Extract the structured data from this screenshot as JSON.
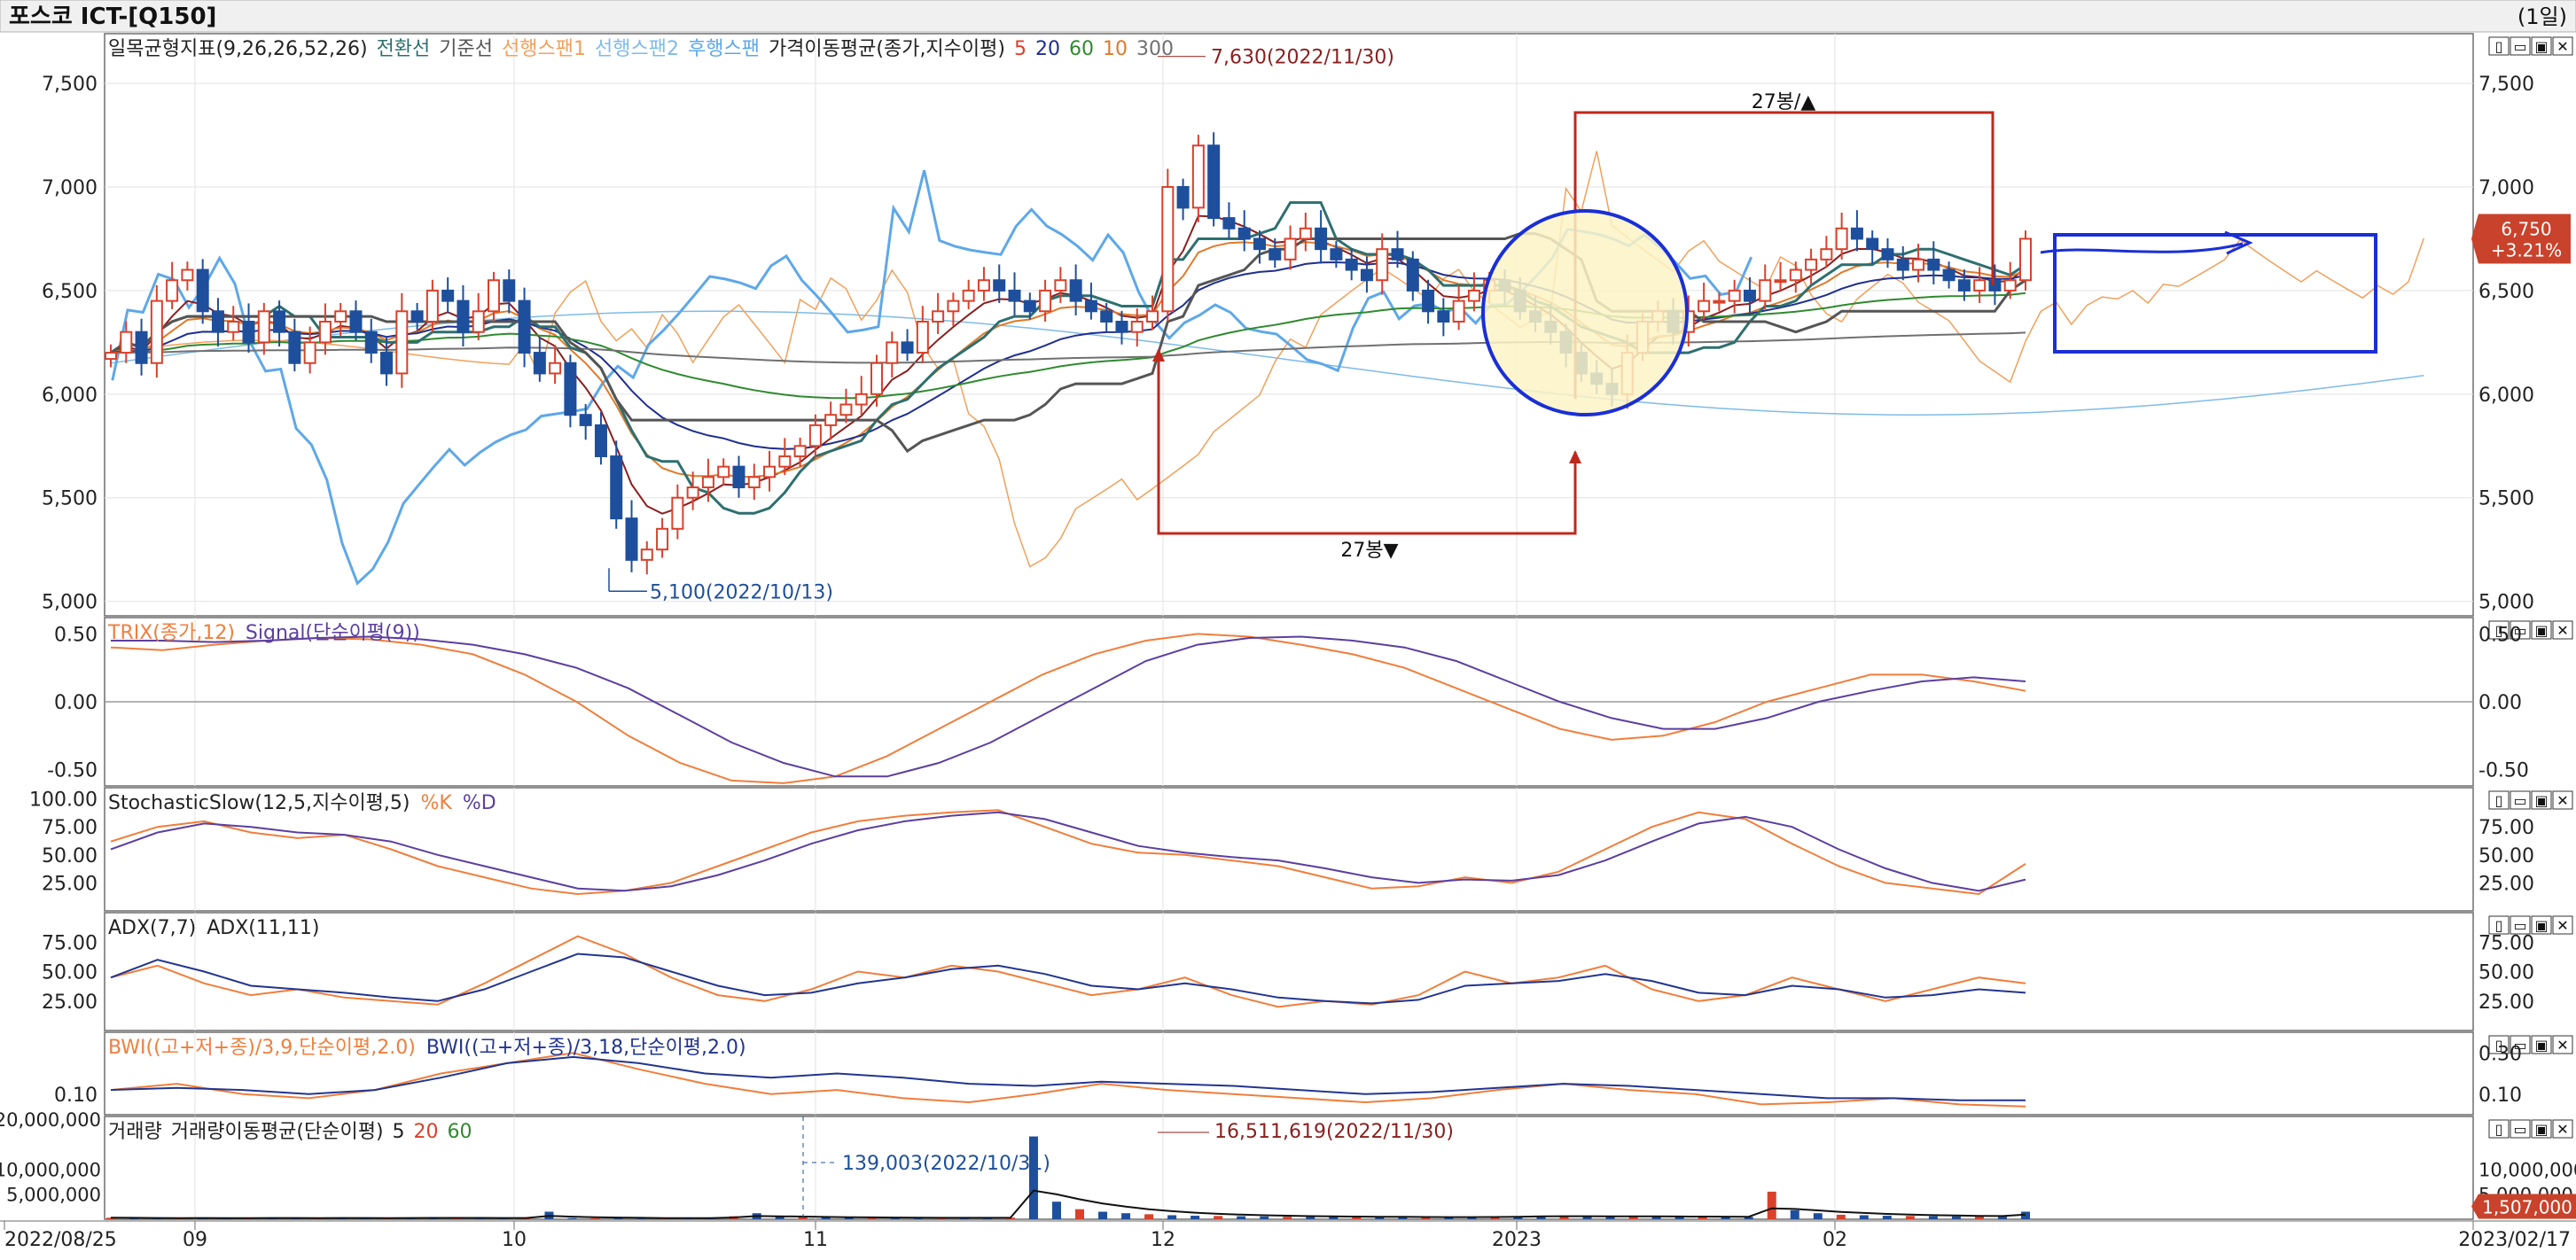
{
  "window": {
    "title": "포스코 ICT-[Q150]",
    "period": "(1일)"
  },
  "colors": {
    "bg": "#ffffff",
    "frame": "#6e6e6e",
    "grid": "#e3e3e3",
    "up": "#d9412b",
    "down": "#1e4f9c",
    "ma5": "#8a1f1f",
    "ma20": "#1f2f8f",
    "ma60": "#2f8a2f",
    "ma10": "#e07a2a",
    "ma300": "#707070",
    "conv": "#2e6f6f",
    "base": "#555555",
    "spanA": "#f2a05a",
    "spanB": "#7fbbe8",
    "lag": "#5ea8e8",
    "trix": "#f07e3c",
    "signal": "#5b3fa0",
    "stochK": "#f07e3c",
    "stochD": "#5b3fa0",
    "adx7": "#f07e3c",
    "adx11": "#22358f",
    "bwi1": "#f07e3c",
    "bwi2": "#22358f",
    "vol": "#1e4f9c",
    "annotRed": "#c0281c",
    "annotBlue": "#1a2fd6",
    "priceTag": "#c9422b",
    "priceRef": "#2a6fbd"
  },
  "panel_controls": [
    "▯",
    "▭",
    "▣",
    "✕"
  ],
  "time_axis": {
    "start": "2022/08/25",
    "end": "2023/02/17",
    "labels": [
      "2022/08/25",
      "09",
      "10",
      "11",
      "12",
      "2023",
      "02",
      "2023/02/17"
    ]
  },
  "price_panel": {
    "legend": [
      {
        "text": "일목균형지표(9,26,26,52,26)",
        "color": "#222222"
      },
      {
        "text": "전환선",
        "color": "#2e6f6f"
      },
      {
        "text": "기준선",
        "color": "#555555"
      },
      {
        "text": "선행스팬1",
        "color": "#f2a05a"
      },
      {
        "text": "선행스팬2",
        "color": "#7fbbe8"
      },
      {
        "text": "후행스팬",
        "color": "#5ea8e8"
      },
      {
        "text": "가격이동평균(종가,지수이평)",
        "color": "#222222"
      },
      {
        "text": "5",
        "color": "#d9412b"
      },
      {
        "text": "20",
        "color": "#1f2f8f"
      },
      {
        "text": "60",
        "color": "#2f8a2f"
      },
      {
        "text": "10",
        "color": "#e07a2a"
      },
      {
        "text": "300",
        "color": "#707070"
      }
    ],
    "yticks": [
      "7,500",
      "7,000",
      "6,500",
      "6,000",
      "5,500",
      "5,000"
    ],
    "ytick_values": [
      7500,
      7000,
      6500,
      6000,
      5500,
      5000
    ],
    "right_yticks": [
      "7,500",
      "7,000",
      "6,500",
      "6,000",
      "5,500",
      "5,000"
    ],
    "ylim": [
      5000,
      7500
    ],
    "high_label": "7,630(2022/11/30)",
    "low_label": "5,100(2022/10/13)",
    "label_27_top": "27봉/▲",
    "label_27_bottom": "27봉▼",
    "current_price": "6,750",
    "current_change": "+3.21%"
  },
  "trix_panel": {
    "legend": [
      {
        "text": "TRIX(종가,12)",
        "color": "#f07e3c"
      },
      {
        "text": "Signal(단순이평(9))",
        "color": "#5b3fa0"
      }
    ],
    "yticks": [
      "0.50",
      "0.00",
      "-0.50"
    ],
    "right_yticks": [
      "0.50",
      "0.00",
      "-0.50"
    ]
  },
  "stoch_panel": {
    "legend": [
      {
        "text": "StochasticSlow(12,5,지수이평,5)",
        "color": "#222222"
      },
      {
        "text": "%K",
        "color": "#f07e3c"
      },
      {
        "text": "%D",
        "color": "#5b3fa0"
      }
    ],
    "yticks": [
      "100.00",
      "75.00",
      "50.00",
      "25.00"
    ],
    "right_yticks": [
      "75.00",
      "50.00",
      "25.00"
    ]
  },
  "adx_panel": {
    "legend": [
      {
        "text": "ADX(7,7)",
        "color": "#222222"
      },
      {
        "text": "ADX(11,11)",
        "color": "#222222"
      }
    ],
    "yticks": [
      "75.00",
      "50.00",
      "25.00"
    ],
    "right_yticks": [
      "75.00",
      "50.00",
      "25.00"
    ]
  },
  "bwi_panel": {
    "legend": [
      {
        "text": "BWI((고+저+종)/3,9,단순이평,2.0)",
        "color": "#f07e3c"
      },
      {
        "text": "BWI((고+저+종)/3,18,단순이평,2.0)",
        "color": "#22358f"
      }
    ],
    "yticks": [
      "0.10"
    ],
    "right_yticks": [
      "0.30",
      "0.10"
    ]
  },
  "volume_panel": {
    "legend": [
      {
        "text": "거래량",
        "color": "#222222"
      },
      {
        "text": "거래량이동평균(단순이평)",
        "color": "#222222"
      },
      {
        "text": "5",
        "color": "#222222"
      },
      {
        "text": "20",
        "color": "#d9412b"
      },
      {
        "text": "60",
        "color": "#2f8a2f"
      }
    ],
    "yticks": [
      "20,000,000",
      "10,000,000",
      "5,000,000"
    ],
    "right_yticks": [
      "10,000,000",
      "5,000,000"
    ],
    "high_label": "16,511,619(2022/11/30)",
    "low_label": "139,003(2022/10/31)",
    "current_volume": "1,507,000"
  },
  "chart_data": [
    {
      "type": "candlestick",
      "title": "포스코 ICT-[Q150]",
      "x_start": "2022/08/25",
      "x_end": "2023/02/17",
      "ylim": [
        5000,
        7500
      ],
      "close": [
        6200,
        6300,
        6150,
        6450,
        6550,
        6600,
        6400,
        6300,
        6350,
        6250,
        6400,
        6300,
        6150,
        6250,
        6350,
        6400,
        6300,
        6200,
        6100,
        6400,
        6350,
        6500,
        6450,
        6300,
        6400,
        6550,
        6450,
        6200,
        6100,
        6150,
        5900,
        5850,
        5700,
        5400,
        5200,
        5250,
        5350,
        5500,
        5550,
        5600,
        5650,
        5550,
        5600,
        5650,
        5700,
        5750,
        5850,
        5900,
        5950,
        6000,
        6150,
        6250,
        6200,
        6350,
        6400,
        6450,
        6500,
        6550,
        6500,
        6450,
        6400,
        6500,
        6550,
        6450,
        6400,
        6350,
        6300,
        6350,
        6400,
        7000,
        6900,
        7200,
        6850,
        6800,
        6750,
        6700,
        6650,
        6750,
        6800,
        6700,
        6650,
        6600,
        6550,
        6700,
        6650,
        6500,
        6400,
        6350,
        6450,
        6500,
        6550,
        6500,
        6400,
        6350,
        6300,
        6200,
        6100,
        6050,
        6000,
        6200,
        6350,
        6400,
        6300,
        6400,
        6450,
        6450,
        6500,
        6450,
        6550,
        6550,
        6600,
        6650,
        6700,
        6800,
        6750,
        6700,
        6650,
        6600,
        6650,
        6600,
        6550,
        6500,
        6550,
        6500,
        6550,
        6750
      ],
      "high": 7630,
      "high_date": "2022/11/30",
      "low": 5100,
      "low_date": "2022/10/13",
      "last_close": 6750,
      "change_pct": 3.21
    },
    {
      "type": "line",
      "name": "TRIX",
      "series": [
        {
          "name": "TRIX(종가,12)",
          "values": [
            0.4,
            0.38,
            0.42,
            0.45,
            0.47,
            0.46,
            0.42,
            0.35,
            0.2,
            0.0,
            -0.25,
            -0.45,
            -0.58,
            -0.6,
            -0.55,
            -0.4,
            -0.2,
            0.0,
            0.2,
            0.35,
            0.45,
            0.5,
            0.48,
            0.42,
            0.35,
            0.25,
            0.1,
            -0.05,
            -0.2,
            -0.28,
            -0.25,
            -0.15,
            0.0,
            0.1,
            0.2,
            0.2,
            0.15,
            0.08
          ]
        },
        {
          "name": "Signal(단순이평(9))",
          "values": [
            0.45,
            0.45,
            0.44,
            0.45,
            0.47,
            0.48,
            0.46,
            0.42,
            0.35,
            0.25,
            0.1,
            -0.1,
            -0.3,
            -0.45,
            -0.55,
            -0.55,
            -0.45,
            -0.3,
            -0.1,
            0.1,
            0.3,
            0.42,
            0.47,
            0.48,
            0.45,
            0.4,
            0.3,
            0.15,
            0.0,
            -0.12,
            -0.2,
            -0.2,
            -0.12,
            0.0,
            0.08,
            0.15,
            0.18,
            0.15
          ]
        }
      ],
      "ylim": [
        -0.6,
        0.6
      ]
    },
    {
      "type": "line",
      "name": "StochasticSlow",
      "series": [
        {
          "name": "%K",
          "values": [
            62,
            75,
            80,
            70,
            65,
            68,
            55,
            40,
            30,
            20,
            15,
            18,
            25,
            40,
            55,
            70,
            80,
            85,
            88,
            90,
            75,
            60,
            52,
            50,
            45,
            40,
            30,
            20,
            22,
            30,
            25,
            35,
            55,
            75,
            88,
            82,
            60,
            40,
            25,
            20,
            15,
            42
          ]
        },
        {
          "name": "%D",
          "values": [
            55,
            70,
            78,
            75,
            70,
            68,
            62,
            50,
            40,
            30,
            20,
            18,
            22,
            32,
            45,
            60,
            72,
            80,
            85,
            88,
            82,
            70,
            58,
            52,
            48,
            45,
            38,
            30,
            25,
            28,
            27,
            32,
            45,
            62,
            78,
            84,
            75,
            55,
            38,
            25,
            18,
            28
          ]
        }
      ],
      "ylim": [
        0,
        100
      ]
    },
    {
      "type": "line",
      "name": "ADX",
      "series": [
        {
          "name": "ADX(7,7)",
          "values": [
            45,
            55,
            40,
            30,
            35,
            28,
            25,
            22,
            40,
            60,
            80,
            65,
            45,
            30,
            25,
            35,
            50,
            45,
            55,
            50,
            40,
            30,
            35,
            45,
            30,
            20,
            25,
            22,
            30,
            50,
            40,
            45,
            55,
            35,
            25,
            30,
            45,
            35,
            25,
            35,
            45,
            40
          ]
        },
        {
          "name": "ADX(11,11)",
          "values": [
            45,
            60,
            50,
            38,
            35,
            32,
            28,
            25,
            35,
            50,
            65,
            62,
            50,
            38,
            30,
            32,
            40,
            45,
            52,
            55,
            48,
            38,
            35,
            40,
            35,
            28,
            25,
            23,
            26,
            38,
            40,
            42,
            48,
            42,
            32,
            30,
            38,
            35,
            28,
            30,
            35,
            32
          ]
        }
      ],
      "ylim": [
        0,
        100
      ]
    },
    {
      "type": "line",
      "name": "BWI",
      "series": [
        {
          "name": "BWI((고+저+종)/3,9,단순이평,2.0)",
          "values": [
            0.12,
            0.15,
            0.1,
            0.08,
            0.12,
            0.2,
            0.25,
            0.3,
            0.22,
            0.15,
            0.1,
            0.12,
            0.08,
            0.06,
            0.1,
            0.15,
            0.12,
            0.1,
            0.08,
            0.06,
            0.08,
            0.12,
            0.15,
            0.12,
            0.1,
            0.05,
            0.06,
            0.08,
            0.05,
            0.04
          ]
        },
        {
          "name": "BWI((고+저+종)/3,18,단순이평,2.0)",
          "values": [
            0.12,
            0.13,
            0.12,
            0.1,
            0.12,
            0.18,
            0.25,
            0.28,
            0.25,
            0.2,
            0.18,
            0.2,
            0.18,
            0.15,
            0.14,
            0.16,
            0.15,
            0.14,
            0.12,
            0.1,
            0.11,
            0.13,
            0.15,
            0.14,
            0.12,
            0.1,
            0.08,
            0.08,
            0.07,
            0.07
          ]
        }
      ],
      "ylim": [
        0,
        0.35
      ]
    },
    {
      "type": "bar",
      "name": "거래량",
      "values": [
        300000,
        250000,
        200000,
        180000,
        260000,
        220000,
        240000,
        280000,
        230000,
        210000,
        260000,
        240000,
        220000,
        250000,
        300000,
        280000,
        260000,
        240000,
        230000,
        1500000,
        220000,
        200000,
        180000,
        160000,
        139003,
        180000,
        250000,
        600000,
        1200000,
        500000,
        400000,
        350000,
        300000,
        280000,
        260000,
        240000,
        260000,
        280000,
        300000,
        320000,
        16511619,
        3500000,
        2000000,
        1500000,
        1200000,
        1000000,
        800000,
        700000,
        650000,
        600000,
        550000,
        500000,
        480000,
        460000,
        450000,
        430000,
        420000,
        400000,
        380000,
        420000,
        500000,
        600000,
        700000,
        650000,
        600000,
        580000,
        560000,
        540000,
        520000,
        500000,
        480000,
        460000,
        5500000,
        1800000,
        1200000,
        900000,
        800000,
        700000,
        650000,
        600000,
        580000,
        560000,
        540000,
        1507000
      ],
      "ylim": [
        0,
        20000000
      ],
      "max_label": "16,511,619(2022/11/30)",
      "min_label": "139,003(2022/10/31)"
    }
  ]
}
